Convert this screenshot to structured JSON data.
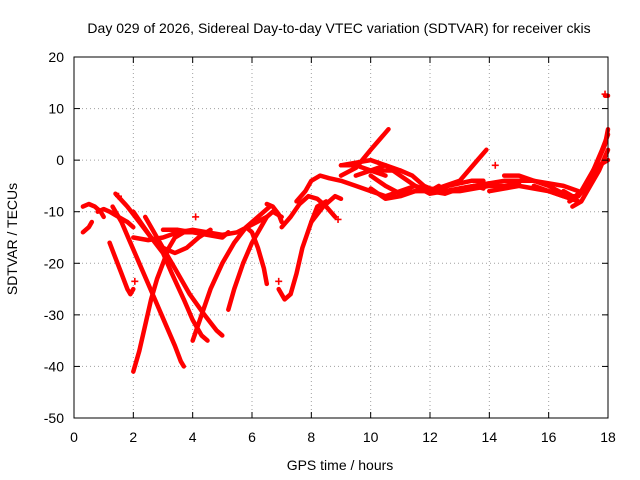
{
  "chart_data": {
    "type": "line",
    "title": "Day 029 of 2026, Sidereal Day-to-day VTEC variation (SDTVAR) for receiver ckis",
    "xlabel": "GPS time / hours",
    "ylabel": "SDTVAR / TECUs",
    "xlim": [
      0,
      18
    ],
    "ylim": [
      -50,
      20
    ],
    "xticks": [
      0,
      2,
      4,
      6,
      8,
      10,
      12,
      14,
      16,
      18
    ],
    "yticks": [
      -50,
      -40,
      -30,
      -20,
      -10,
      0,
      10,
      20
    ],
    "xtick_labels": [
      "0",
      "2",
      "4",
      "6",
      "8",
      "10",
      "12",
      "14",
      "16",
      "18"
    ],
    "ytick_labels": [
      "-50",
      "-40",
      "-30",
      "-20",
      "-10",
      "0",
      "10",
      "20"
    ],
    "grid": true,
    "color": "#ff0000",
    "series": [
      {
        "name": "s1",
        "x": [
          0.3,
          0.5,
          0.6
        ],
        "y": [
          -14,
          -13,
          -12
        ]
      },
      {
        "name": "s2",
        "x": [
          0.3,
          0.5,
          0.7,
          0.9,
          1.0
        ],
        "y": [
          -9,
          -8.5,
          -9,
          -10,
          -11
        ]
      },
      {
        "name": "s3",
        "x": [
          0.8,
          1.0,
          1.2,
          1.5,
          1.8,
          2.0
        ],
        "y": [
          -10,
          -9.5,
          -10,
          -11,
          -12,
          -13
        ]
      },
      {
        "name": "s4",
        "x": [
          1.2,
          1.4,
          1.6,
          1.8,
          1.9,
          2.0
        ],
        "y": [
          -16,
          -19,
          -22,
          -25,
          -26,
          -25
        ]
      },
      {
        "name": "s5",
        "x": [
          1.4,
          1.8,
          2.2,
          2.6,
          3.0,
          3.3,
          3.7,
          4.0,
          4.3,
          4.5
        ],
        "y": [
          -6.5,
          -9,
          -12,
          -15,
          -18,
          -22,
          -27,
          -31,
          -34,
          -35
        ]
      },
      {
        "name": "s6",
        "x": [
          1.3,
          1.6,
          1.9,
          2.2,
          2.5,
          2.8,
          3.1,
          3.4,
          3.6,
          3.7
        ],
        "y": [
          -9,
          -12,
          -16,
          -20,
          -24,
          -28,
          -32,
          -36,
          -39,
          -40
        ]
      },
      {
        "name": "s7",
        "x": [
          2.0,
          2.2,
          2.4,
          2.6,
          2.8,
          3.0,
          3.2,
          3.4,
          3.7,
          4.0
        ],
        "y": [
          -41,
          -37,
          -32,
          -27,
          -23,
          -20,
          -17,
          -15,
          -14,
          -14
        ]
      },
      {
        "name": "s8",
        "x": [
          2.0,
          2.3,
          2.6,
          3.0,
          3.4,
          3.8,
          4.2,
          4.6
        ],
        "y": [
          -10,
          -12.5,
          -15,
          -17,
          -18,
          -17,
          -15,
          -13.5
        ]
      },
      {
        "name": "s9",
        "x": [
          2.0,
          2.5,
          3.0,
          3.5,
          4.0,
          4.5,
          5.0,
          5.5,
          6.0,
          6.5
        ],
        "y": [
          -15,
          -15.5,
          -15,
          -14,
          -13.5,
          -14,
          -14.5,
          -14,
          -12.5,
          -11
        ]
      },
      {
        "name": "s10",
        "x": [
          3.0,
          3.5,
          4.0,
          4.5,
          5.0,
          5.2
        ],
        "y": [
          -13.5,
          -13.5,
          -14,
          -14.5,
          -15,
          -14
        ]
      },
      {
        "name": "s11",
        "x": [
          2.4,
          2.9,
          3.4,
          3.9,
          4.4,
          4.8,
          5.0
        ],
        "y": [
          -11,
          -16,
          -21,
          -26,
          -30,
          -33,
          -34
        ]
      },
      {
        "name": "s12",
        "x": [
          4.0,
          4.3,
          4.6,
          5.0,
          5.4,
          5.8,
          6.2,
          6.6
        ],
        "y": [
          -35,
          -30,
          -25,
          -20,
          -16,
          -13,
          -11,
          -9
        ]
      },
      {
        "name": "s13",
        "x": [
          5.2,
          5.4,
          5.7,
          6.0,
          6.3,
          6.5,
          6.7,
          7.0
        ],
        "y": [
          -29,
          -25,
          -20,
          -16,
          -13,
          -11,
          -10,
          -11
        ]
      },
      {
        "name": "s14",
        "x": [
          5.8,
          6.0,
          6.2,
          6.4,
          6.5
        ],
        "y": [
          -13,
          -14,
          -17,
          -21,
          -24
        ]
      },
      {
        "name": "s15",
        "x": [
          6.5,
          6.7,
          6.9,
          7.0
        ],
        "y": [
          -8.5,
          -9,
          -10.5,
          -12
        ]
      },
      {
        "name": "s16",
        "x": [
          6.9,
          7.1,
          7.3,
          7.5,
          7.7,
          8.0,
          8.2,
          8.5
        ],
        "y": [
          -25,
          -27,
          -26,
          -22,
          -17,
          -12,
          -9,
          -8
        ]
      },
      {
        "name": "s17",
        "x": [
          7.0,
          7.3,
          7.6,
          7.9,
          8.2,
          8.5,
          8.8
        ],
        "y": [
          -13,
          -11,
          -8.5,
          -7,
          -7.5,
          -9,
          -11
        ]
      },
      {
        "name": "s18",
        "x": [
          7.5,
          7.8,
          8.0,
          8.3,
          8.6,
          9.0,
          9.5,
          10.0,
          10.5,
          11.0,
          11.5,
          12.0,
          12.5,
          13.0,
          13.5,
          13.8
        ],
        "y": [
          -8,
          -6,
          -4,
          -3,
          -3.5,
          -4,
          -5,
          -6,
          -7,
          -6,
          -5,
          -6,
          -6.5,
          -5.5,
          -5,
          -5.5
        ]
      },
      {
        "name": "s19",
        "x": [
          8.0,
          8.4,
          8.8,
          9.0
        ],
        "y": [
          -12,
          -9,
          -7,
          -7.5
        ]
      },
      {
        "name": "s20",
        "x": [
          9.0,
          9.5,
          10.0,
          10.5
        ],
        "y": [
          -1,
          -1,
          -2,
          -3
        ]
      },
      {
        "name": "s21",
        "x": [
          9.0,
          9.5,
          10.0,
          10.5,
          11.0
        ],
        "y": [
          -1,
          -0.5,
          0,
          -1,
          -2
        ]
      },
      {
        "name": "s22",
        "x": [
          9.0,
          9.5,
          10.0,
          10.3,
          10.6
        ],
        "y": [
          -3,
          -1.5,
          2,
          4,
          6
        ]
      },
      {
        "name": "s23",
        "x": [
          9.5,
          10.0,
          10.5,
          11.0,
          11.5,
          12.0,
          12.5,
          13.0,
          13.5,
          14.0
        ],
        "y": [
          -3,
          -2,
          -1,
          -3,
          -5,
          -6.5,
          -6,
          -5.5,
          -5,
          -4.5
        ]
      },
      {
        "name": "s24",
        "x": [
          10.0,
          10.5,
          11.0,
          11.5,
          12.0,
          12.3
        ],
        "y": [
          -3,
          -5,
          -6.5,
          -6,
          -6,
          -5
        ]
      },
      {
        "name": "s25",
        "x": [
          10.2,
          10.6,
          11.0,
          11.4,
          11.8,
          12.2,
          12.6,
          13.0,
          13.4,
          13.8
        ],
        "y": [
          -2,
          -2,
          -2,
          -3,
          -5,
          -6,
          -5,
          -4.5,
          -4,
          -4
        ]
      },
      {
        "name": "s26",
        "x": [
          10.0,
          10.5,
          11.0,
          11.5,
          12.0,
          12.5,
          13.0,
          13.5,
          14.0,
          14.5,
          15.0
        ],
        "y": [
          -5.5,
          -7.5,
          -7,
          -6,
          -5.5,
          -6,
          -6,
          -5.5,
          -5,
          -5,
          -4.5
        ]
      },
      {
        "name": "s27",
        "x": [
          12.0,
          12.5,
          13.0,
          13.3,
          13.6,
          13.9
        ],
        "y": [
          -6,
          -5,
          -4,
          -2,
          0,
          2
        ]
      },
      {
        "name": "s28",
        "x": [
          13.5,
          14.0,
          14.5,
          15.0,
          15.5,
          16.0,
          16.5,
          17.0
        ],
        "y": [
          -5,
          -4.5,
          -4,
          -4,
          -4,
          -4.5,
          -5,
          -6
        ]
      },
      {
        "name": "s29",
        "x": [
          14.0,
          14.5,
          15.0,
          15.5,
          16.0,
          16.5,
          17.0
        ],
        "y": [
          -6,
          -5.5,
          -5,
          -5.5,
          -6,
          -7,
          -8
        ]
      },
      {
        "name": "s30",
        "x": [
          14.5,
          15.0,
          15.5,
          16.0,
          16.5,
          17.0
        ],
        "y": [
          -3,
          -3,
          -4,
          -5,
          -6.5,
          -8
        ]
      },
      {
        "name": "s31",
        "x": [
          15.5,
          16.0,
          16.5,
          16.8,
          17.1,
          17.4,
          17.7,
          18.0
        ],
        "y": [
          -5,
          -6,
          -7,
          -7.5,
          -6,
          -4,
          -1,
          0
        ]
      },
      {
        "name": "s32",
        "x": [
          16.5,
          16.8,
          17.0,
          17.3,
          17.5,
          17.8,
          18.0
        ],
        "y": [
          -6,
          -7,
          -7,
          -5,
          -2,
          2,
          5
        ]
      },
      {
        "name": "s33",
        "x": [
          16.7,
          17.0,
          17.3,
          17.6,
          17.9,
          18.0
        ],
        "y": [
          -8,
          -7,
          -4,
          -1,
          3,
          6
        ]
      },
      {
        "name": "s34",
        "x": [
          16.8,
          17.1,
          17.4,
          17.7,
          18.0
        ],
        "y": [
          -9,
          -8,
          -5,
          -2,
          2
        ]
      },
      {
        "name": "s35",
        "x": [
          17.9,
          18.0
        ],
        "y": [
          12.5,
          12.5
        ]
      }
    ],
    "endpoints": [
      {
        "x": 8.9,
        "y": -11.5
      },
      {
        "x": 2.05,
        "y": -23.5
      },
      {
        "x": 4.1,
        "y": -11
      },
      {
        "x": 6.9,
        "y": -23.5
      },
      {
        "x": 17.9,
        "y": 12.8
      },
      {
        "x": 14.2,
        "y": -1
      },
      {
        "x": 1.5,
        "y": -7
      }
    ]
  }
}
